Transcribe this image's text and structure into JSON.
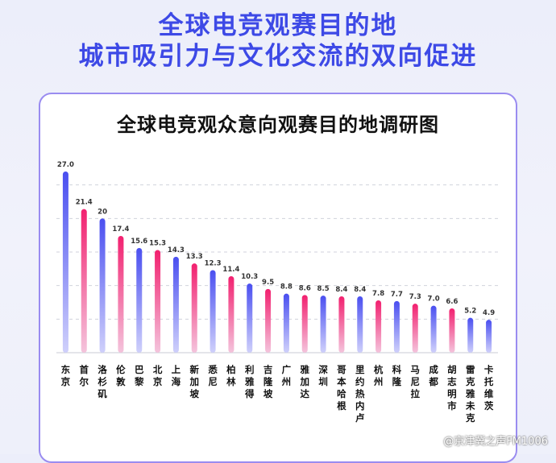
{
  "header": {
    "line1": "全球电竞观赛目的地",
    "line2": "城市吸引力与文化交流的双向促进"
  },
  "watermark": "@京津冀之声FM1006",
  "colors": {
    "accent": "#3d49e6",
    "bar_blue": "#4a4ff0",
    "bar_pink": "#f2206f",
    "card_border": "#9a8cf0"
  },
  "chart_data": {
    "type": "bar",
    "title": "全球电竞观众意向观赛目的地调研图",
    "grid": true,
    "categories": [
      "东京",
      "首尔",
      "洛杉矶",
      "伦敦",
      "巴黎",
      "北京",
      "上海",
      "新加坡",
      "悉尼",
      "柏林",
      "利雅得",
      "吉隆坡",
      "广州",
      "雅加达",
      "深圳",
      "哥本哈根",
      "里约热内卢",
      "杭州",
      "科隆",
      "马尼拉",
      "成都",
      "胡志明市",
      "雷克雅未克",
      "卡托维茨"
    ],
    "labels": [
      "27.0",
      "21.4",
      "20",
      "17.4",
      "15.6",
      "15.3",
      "14.3",
      "13.3",
      "12.3",
      "11.4",
      "10.3",
      "9.5",
      "8.8",
      "8.6",
      "8.5",
      "8.4",
      "8.4",
      "7.8",
      "7.7",
      "7.3",
      "7.0",
      "6.6",
      "5.2",
      "4.9"
    ],
    "values": [
      27.0,
      21.4,
      20,
      17.4,
      15.6,
      15.3,
      14.3,
      13.3,
      12.3,
      11.4,
      10.3,
      9.5,
      8.8,
      8.6,
      8.5,
      8.4,
      8.4,
      7.8,
      7.7,
      7.3,
      7.0,
      6.6,
      5.2,
      4.9
    ],
    "bar_colors": [
      "blue",
      "pink",
      "blue",
      "pink",
      "blue",
      "pink",
      "blue",
      "pink",
      "blue",
      "pink",
      "blue",
      "pink",
      "blue",
      "pink",
      "blue",
      "pink",
      "blue",
      "pink",
      "blue",
      "pink",
      "blue",
      "pink",
      "blue",
      "blue"
    ],
    "ylim": [
      0,
      30
    ]
  }
}
